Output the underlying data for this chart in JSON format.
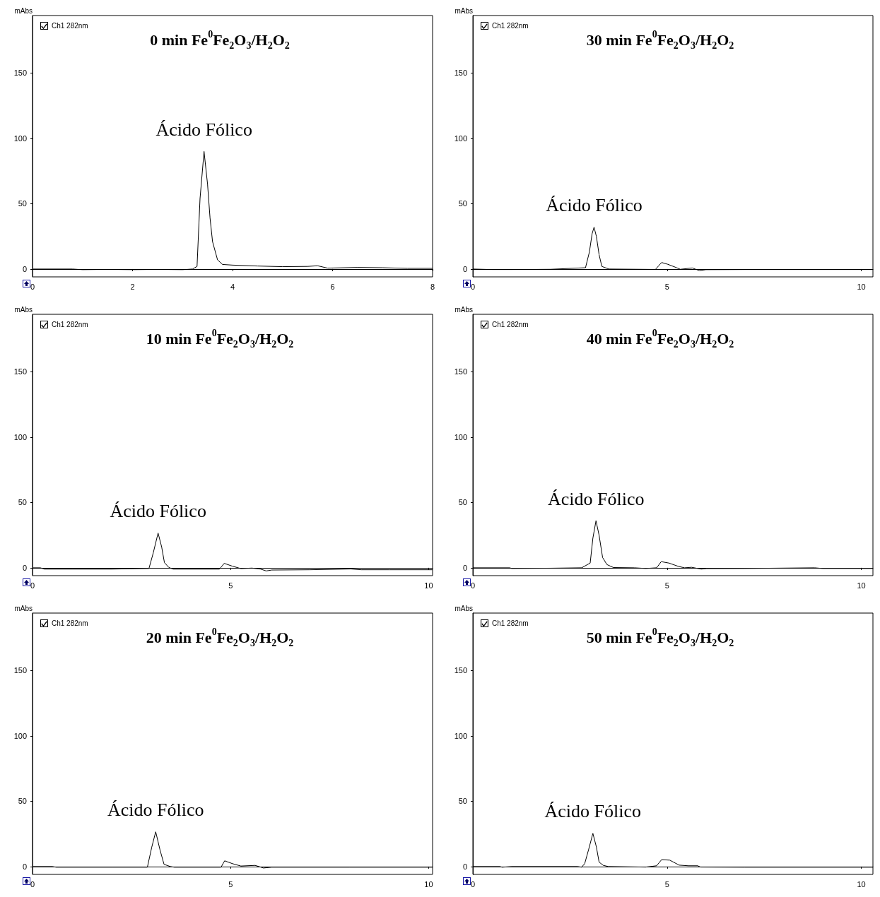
{
  "chart_data": [
    {
      "type": "line",
      "title": "0 min Fe$^{0}$Fe$_{2}$O$_{3}$/H$_{2}$O$_{2}$",
      "ylabel": "mAbs",
      "legend": "top left",
      "xlim": [
        0,
        8
      ],
      "xticks": [
        0,
        2,
        4,
        6,
        8
      ],
      "ylim": [
        -6,
        194
      ],
      "yticks": [
        0,
        50,
        100,
        150
      ],
      "series": [
        {
          "name": "Ch1 282nm",
          "color": "#000000",
          "x": [
            0,
            0.8,
            1.0,
            1.5,
            2.0,
            2.5,
            3.0,
            3.2,
            3.29,
            3.35,
            3.43,
            3.5,
            3.55,
            3.6,
            3.7,
            3.8,
            4.0,
            4.5,
            5.0,
            5.5,
            5.7,
            5.9,
            6.5,
            7.0,
            7.5,
            8.0
          ],
          "values": [
            0,
            0,
            -0.5,
            -0.3,
            -0.5,
            -0.3,
            -0.5,
            0,
            2,
            54,
            90,
            65,
            39,
            21,
            7,
            3.5,
            3,
            2.3,
            1.8,
            2,
            2.5,
            0.7,
            1.2,
            1,
            0.5,
            0.5
          ]
        }
      ],
      "annotations": [
        {
          "text": "Ácido Fólico",
          "x": 3.43,
          "y": 90
        }
      ]
    },
    {
      "type": "line",
      "title": "30 min Fe$^{0}$Fe$_{2}$O$_{3}$/H$_{2}$O$_{2}$",
      "ylabel": "mAbs",
      "legend": "top left",
      "xlim": [
        0,
        10.3
      ],
      "xticks": [
        0,
        5,
        10
      ],
      "ylim": [
        -6,
        194
      ],
      "yticks": [
        0,
        50,
        100,
        150
      ],
      "series": [
        {
          "name": "Ch1 282nm",
          "color": "#000000",
          "x": [
            0,
            0.5,
            1,
            2,
            2.9,
            3.0,
            3.07,
            3.12,
            3.18,
            3.25,
            3.32,
            3.5,
            4.7,
            4.8,
            4.86,
            5.02,
            5.23,
            5.34,
            5.65,
            5.83,
            6.0,
            7,
            8,
            9,
            10.3
          ],
          "values": [
            0,
            -0.4,
            -0.4,
            -0.2,
            1,
            13,
            27,
            32,
            25,
            11,
            2,
            0,
            -0.3,
            3,
            5,
            3.6,
            1.2,
            -0.2,
            0.8,
            -1.2,
            -0.5,
            -0.4,
            -0.4,
            -0.4,
            -0.4
          ]
        }
      ],
      "annotations": [
        {
          "text": "Ácido Fólico",
          "x": 3.12,
          "y": 32
        }
      ]
    },
    {
      "type": "line",
      "title": "10 min Fe$^{0}$Fe$_{2}$O$_{3}$/H$_{2}$O$_{2}$",
      "ylabel": "mAbs",
      "legend": "top left",
      "xlim": [
        0,
        10.1
      ],
      "xticks": [
        0,
        5,
        10
      ],
      "ylim": [
        -6,
        194
      ],
      "yticks": [
        0,
        50,
        100,
        150
      ],
      "series": [
        {
          "name": "Ch1 282nm",
          "color": "#000000",
          "x": [
            0,
            0.2,
            0.3,
            1,
            2,
            2.94,
            3.05,
            3.17,
            3.26,
            3.33,
            3.44,
            3.55,
            4.72,
            4.84,
            5.04,
            5.26,
            5.54,
            5.76,
            5.9,
            6.04,
            7,
            8.04,
            8.3,
            9,
            10.1
          ],
          "values": [
            0,
            0,
            -1,
            -1,
            -1,
            -0.5,
            11.6,
            26.6,
            16,
            4,
            0.3,
            -1,
            -1,
            3.4,
            1.3,
            -0.6,
            -0.2,
            -1,
            -2.4,
            -1.7,
            -1.5,
            -0.9,
            -1.5,
            -1.5,
            -1.5
          ]
        }
      ],
      "annotations": [
        {
          "text": "Ácido Fólico",
          "x": 3.17,
          "y": 26.6
        }
      ]
    },
    {
      "type": "line",
      "title": "40 min Fe$^{0}$Fe$_{2}$O$_{3}$/H$_{2}$O$_{2}$",
      "ylabel": "mAbs",
      "legend": "top left",
      "xlim": [
        0,
        10.3
      ],
      "xticks": [
        0,
        5,
        10
      ],
      "ylim": [
        -6,
        194
      ],
      "yticks": [
        0,
        50,
        100,
        150
      ],
      "series": [
        {
          "name": "Ch1 282nm",
          "color": "#000000",
          "x": [
            0,
            0.95,
            1.0,
            2,
            2.8,
            3.02,
            3.09,
            3.17,
            3.25,
            3.34,
            3.45,
            3.62,
            4.16,
            4.45,
            4.73,
            4.85,
            5.05,
            5.3,
            5.45,
            5.63,
            5.88,
            6.02,
            7,
            8.8,
            9,
            10.3
          ],
          "values": [
            0,
            0,
            -0.5,
            -0.3,
            0,
            3.6,
            22.7,
            36,
            24.9,
            7.9,
            2.5,
            0.2,
            0,
            -0.5,
            0,
            4.7,
            3.6,
            1,
            0,
            0.4,
            -1,
            -0.6,
            -0.5,
            0,
            -0.5,
            -0.5
          ]
        }
      ],
      "annotations": [
        {
          "text": "Ácido Fólico",
          "x": 3.17,
          "y": 36
        }
      ]
    },
    {
      "type": "line",
      "title": "20 min Fe$^{0}$Fe$_{2}$O$_{3}$/H$_{2}$O$_{2}$",
      "ylabel": "mAbs",
      "legend": "top left",
      "xlim": [
        0,
        10.1
      ],
      "xticks": [
        0,
        5,
        10
      ],
      "ylim": [
        -6,
        194
      ],
      "yticks": [
        0,
        50,
        100,
        150
      ],
      "series": [
        {
          "name": "Ch1 282nm",
          "color": "#000000",
          "x": [
            0,
            0.5,
            0.6,
            2,
            2.9,
            3.01,
            3.11,
            3.22,
            3.32,
            3.48,
            3.58,
            4.76,
            4.85,
            5.05,
            5.26,
            5.62,
            5.83,
            6.04,
            8,
            10.1
          ],
          "values": [
            0,
            0,
            -0.5,
            -0.5,
            -0.5,
            14.8,
            26.6,
            12.6,
            1.7,
            0,
            -0.5,
            -0.5,
            4.4,
            2.2,
            0.4,
            0.9,
            -1.1,
            -0.5,
            -0.5,
            -0.5
          ]
        }
      ],
      "annotations": [
        {
          "text": "Ácido Fólico",
          "x": 3.11,
          "y": 26.6
        }
      ]
    },
    {
      "type": "line",
      "title": "50 min Fe$^{0}$Fe$_{2}$O$_{3}$/H$_{2}$O$_{2}$",
      "ylabel": "mAbs",
      "legend": "top left",
      "xlim": [
        0,
        10.3
      ],
      "xticks": [
        0,
        5,
        10
      ],
      "ylim": [
        -6,
        194
      ],
      "yticks": [
        0,
        50,
        100,
        150
      ],
      "series": [
        {
          "name": "Ch1 282nm",
          "color": "#000000",
          "x": [
            0,
            0.7,
            0.75,
            1,
            2.7,
            2.8,
            2.88,
            2.98,
            3.09,
            3.18,
            3.25,
            3.36,
            3.49,
            4.45,
            4.73,
            4.86,
            5.07,
            5.31,
            5.55,
            5.79,
            5.86,
            7,
            10.3
          ],
          "values": [
            0,
            0,
            -0.5,
            0,
            0,
            -0.5,
            2.3,
            13,
            25.4,
            15,
            3.4,
            0.9,
            0,
            -0.4,
            0.6,
            5.3,
            4.9,
            1.1,
            0.6,
            0.6,
            -0.4,
            -0.5,
            -0.5
          ]
        }
      ],
      "annotations": [
        {
          "text": "Ácido Fólico",
          "x": 3.09,
          "y": 25.4
        }
      ]
    }
  ]
}
